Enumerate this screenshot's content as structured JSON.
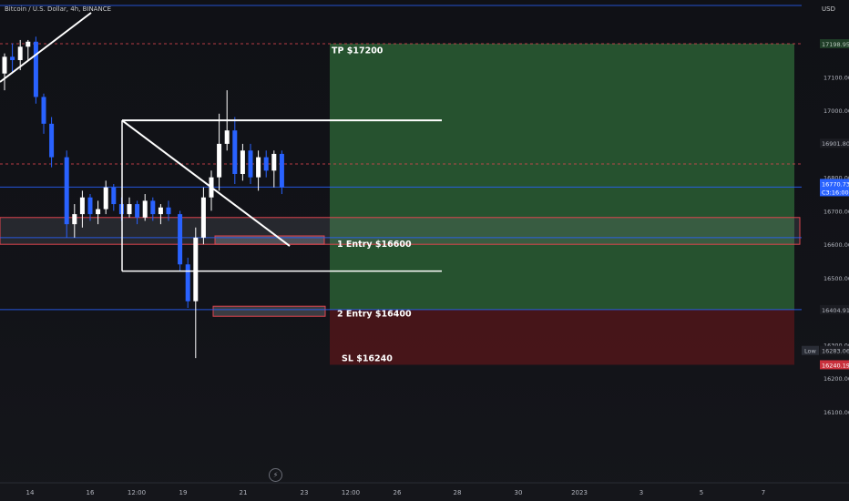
{
  "symbol_title": "Bitcoin / U.S. Dollar, 4h, BINANCE",
  "currency": "USD",
  "icons": {
    "replay": "lightning-bolt-icon"
  },
  "colors": {
    "background": "#121318",
    "candle_up": "#ffffff",
    "candle_down": "#2962ff",
    "tp_zone": "#2a5e34",
    "sl_zone": "#4a1519",
    "zone_border": "#e0454f",
    "price_line": "#2962ff",
    "axis_text": "#b2b5be"
  },
  "chart_data": {
    "type": "candlestick",
    "x_ticks": [
      "14",
      "16",
      "12:00",
      "19",
      "21",
      "23",
      "12:00",
      "26",
      "28",
      "30",
      "2023",
      "3",
      "5",
      "7"
    ],
    "y_ticks": [
      17100,
      17000,
      16900,
      16800,
      16700,
      16600,
      16500,
      16400,
      16300,
      16200,
      16100
    ],
    "y_range": [
      16075,
      17205
    ],
    "price_labels": [
      {
        "text": "17198.95",
        "value": 17198.95,
        "style": "tp"
      },
      {
        "text": "16901.80",
        "value": 16901.8,
        "style": "muted"
      },
      {
        "text": "16770.73",
        "value": 16770.73,
        "style": "current"
      },
      {
        "text": "C3:16:00",
        "value": 16770.73,
        "style": "current-sub"
      },
      {
        "text": "16404.91",
        "value": 16404.91,
        "style": "entry"
      },
      {
        "text": "16283.06",
        "value": 16283.06,
        "style": "low"
      },
      {
        "text": "16240.19",
        "value": 16240.19,
        "style": "sl"
      }
    ],
    "low_badge": "Low",
    "candles": [
      {
        "o": 17110,
        "h": 17170,
        "l": 17060,
        "c": 17160
      },
      {
        "o": 17160,
        "h": 17200,
        "l": 17110,
        "c": 17150
      },
      {
        "o": 17150,
        "h": 17210,
        "l": 17120,
        "c": 17190
      },
      {
        "o": 17190,
        "h": 17210,
        "l": 17150,
        "c": 17205
      },
      {
        "o": 17205,
        "h": 17220,
        "l": 17020,
        "c": 17040
      },
      {
        "o": 17040,
        "h": 17050,
        "l": 16930,
        "c": 16960
      },
      {
        "o": 16960,
        "h": 16980,
        "l": 16830,
        "c": 16860
      },
      {
        "o": 16860,
        "h": 16880,
        "l": 16620,
        "c": 16660
      },
      {
        "o": 16660,
        "h": 16720,
        "l": 16620,
        "c": 16690
      },
      {
        "o": 16690,
        "h": 16760,
        "l": 16650,
        "c": 16740
      },
      {
        "o": 16740,
        "h": 16750,
        "l": 16670,
        "c": 16690
      },
      {
        "o": 16690,
        "h": 16730,
        "l": 16660,
        "c": 16705
      },
      {
        "o": 16705,
        "h": 16790,
        "l": 16690,
        "c": 16770
      },
      {
        "o": 16770,
        "h": 16780,
        "l": 16700,
        "c": 16720
      },
      {
        "o": 16720,
        "h": 16740,
        "l": 16670,
        "c": 16690
      },
      {
        "o": 16690,
        "h": 16740,
        "l": 16680,
        "c": 16720
      },
      {
        "o": 16720,
        "h": 16730,
        "l": 16660,
        "c": 16680
      },
      {
        "o": 16680,
        "h": 16750,
        "l": 16670,
        "c": 16730
      },
      {
        "o": 16730,
        "h": 16740,
        "l": 16670,
        "c": 16690
      },
      {
        "o": 16690,
        "h": 16720,
        "l": 16660,
        "c": 16710
      },
      {
        "o": 16710,
        "h": 16730,
        "l": 16670,
        "c": 16690
      },
      {
        "o": 16690,
        "h": 16700,
        "l": 16520,
        "c": 16540
      },
      {
        "o": 16540,
        "h": 16560,
        "l": 16410,
        "c": 16430
      },
      {
        "o": 16430,
        "h": 16650,
        "l": 16260,
        "c": 16620
      },
      {
        "o": 16620,
        "h": 16770,
        "l": 16600,
        "c": 16740
      },
      {
        "o": 16740,
        "h": 16820,
        "l": 16700,
        "c": 16800
      },
      {
        "o": 16800,
        "h": 16990,
        "l": 16760,
        "c": 16900
      },
      {
        "o": 16900,
        "h": 17060,
        "l": 16880,
        "c": 16940
      },
      {
        "o": 16940,
        "h": 16980,
        "l": 16780,
        "c": 16810
      },
      {
        "o": 16810,
        "h": 16900,
        "l": 16790,
        "c": 16880
      },
      {
        "o": 16880,
        "h": 16900,
        "l": 16780,
        "c": 16800
      },
      {
        "o": 16800,
        "h": 16880,
        "l": 16760,
        "c": 16860
      },
      {
        "o": 16860,
        "h": 16880,
        "l": 16800,
        "c": 16820
      },
      {
        "o": 16820,
        "h": 16880,
        "l": 16770,
        "c": 16870
      },
      {
        "o": 16870,
        "h": 16880,
        "l": 16750,
        "c": 16770
      }
    ],
    "annotations": [
      {
        "text": "TP $17200",
        "value": 17200
      },
      {
        "text": "1 Entry $16600",
        "value": 16600
      },
      {
        "text": "2 Entry $16400",
        "value": 16400
      },
      {
        "text": "SL $16240",
        "value": 16240
      }
    ],
    "zones": {
      "take_profit": [
        16404.91,
        17198.95
      ],
      "stop_loss": [
        16240.19,
        16404.91
      ],
      "entry_1": [
        16600,
        16680
      ],
      "entry_2": [
        16385,
        16415
      ]
    },
    "horizontal_levels": {
      "dashed_red": [
        17198.95,
        16840
      ],
      "blue": [
        16770.73,
        16620,
        16404.91
      ],
      "triangle_top": 16970,
      "triangle_bottom": 16520
    }
  }
}
